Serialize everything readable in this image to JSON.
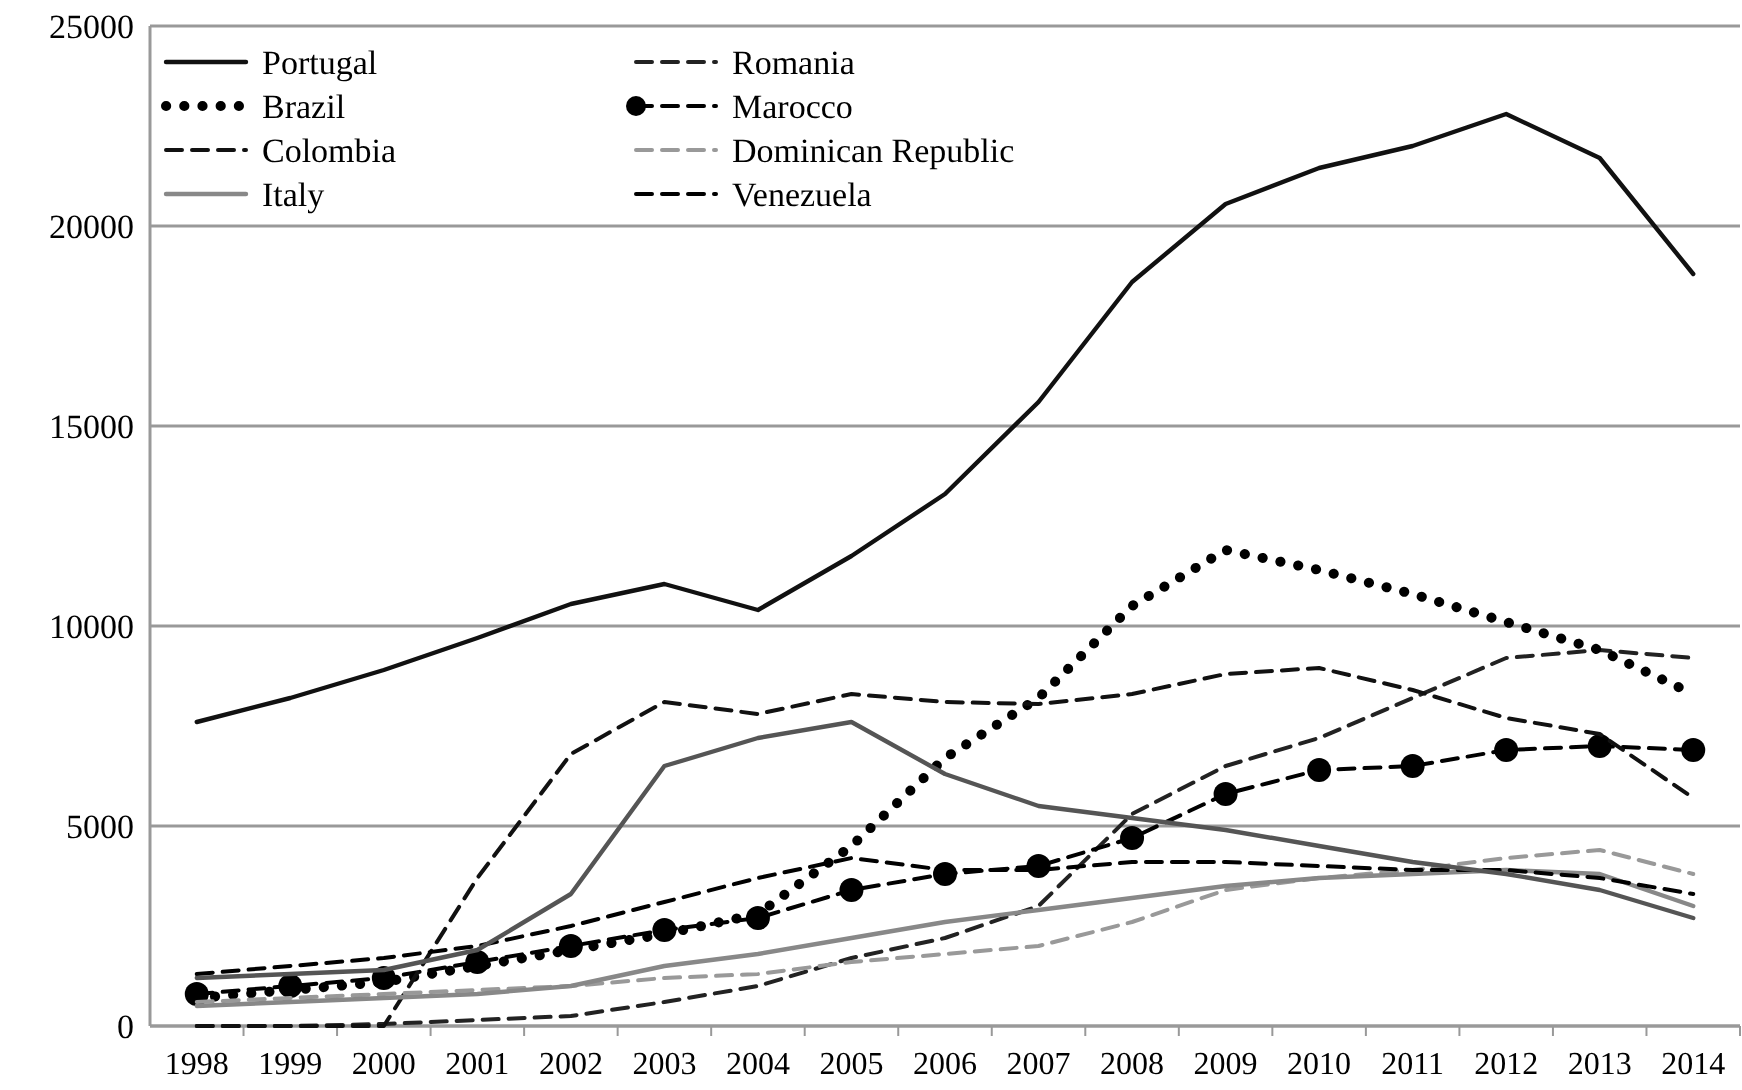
{
  "chart_data": {
    "type": "line",
    "categories": [
      "1998",
      "1999",
      "2000",
      "2001",
      "2002",
      "2003",
      "2004",
      "2005",
      "2006",
      "2007",
      "2008",
      "2009",
      "2010",
      "2011",
      "2012",
      "2013",
      "2014"
    ],
    "ylim": [
      0,
      25000
    ],
    "yticks": [
      0,
      5000,
      10000,
      15000,
      20000,
      25000
    ],
    "grid": "y",
    "legend": "top left",
    "series": [
      {
        "name": "Portugal",
        "color": "#111111",
        "line_style": "solid",
        "values": [
          7600,
          8200,
          8900,
          9700,
          10550,
          11050,
          10400,
          11750,
          13300,
          15600,
          18600,
          20550,
          21450,
          22000,
          22800,
          21700,
          18800
        ]
      },
      {
        "name": "Romania",
        "color": "#222222",
        "line_style": "dashed",
        "values": [
          0,
          0,
          50,
          150,
          250,
          600,
          1000,
          1700,
          2200,
          3000,
          5300,
          6500,
          7200,
          8200,
          9200,
          9400,
          9200
        ]
      },
      {
        "name": "Brazil",
        "color": "#000000",
        "line_style": "dotted",
        "values": [
          700,
          900,
          1100,
          1500,
          1900,
          2300,
          2800,
          4500,
          6700,
          8200,
          10500,
          11900,
          11400,
          10800,
          10100,
          9400,
          8300
        ]
      },
      {
        "name": "Marocco",
        "color": "#000000",
        "line_style": "dashed",
        "marker": "circle",
        "values": [
          800,
          1000,
          1200,
          1600,
          2000,
          2400,
          2700,
          3400,
          3800,
          4000,
          4700,
          5800,
          6400,
          6500,
          6900,
          7000,
          6900
        ]
      },
      {
        "name": "Colombia",
        "color": "#111111",
        "line_style": "dashed",
        "values": [
          0,
          0,
          0,
          3700,
          6800,
          8100,
          7800,
          8300,
          8100,
          8050,
          8300,
          8800,
          8950,
          8400,
          7700,
          7300,
          5700
        ]
      },
      {
        "name": "Dominican Republic",
        "color": "#999999",
        "line_style": "dashed",
        "values": [
          600,
          700,
          800,
          900,
          1000,
          1200,
          1300,
          1600,
          1800,
          2000,
          2600,
          3400,
          3700,
          3900,
          4200,
          4400,
          3800
        ]
      },
      {
        "name": "Italy",
        "color": "#888888",
        "line_style": "solid",
        "values": [
          500,
          600,
          700,
          800,
          1000,
          1500,
          1800,
          2200,
          2600,
          2900,
          3200,
          3500,
          3700,
          3800,
          3900,
          3800,
          3000
        ]
      },
      {
        "name": "Venezuela",
        "color": "#000000",
        "line_style": "dashed",
        "values": [
          1300,
          1500,
          1700,
          2000,
          2500,
          3100,
          3700,
          4200,
          3900,
          3900,
          4100,
          4100,
          4000,
          3900,
          3900,
          3700,
          3300
        ]
      },
      {
        "color": "#555555",
        "line_style": "solid",
        "values": [
          1200,
          1300,
          1400,
          1900,
          3300,
          6500,
          7200,
          7600,
          6300,
          5500,
          5200,
          4900,
          4500,
          4100,
          3800,
          3400,
          2700
        ]
      }
    ]
  }
}
